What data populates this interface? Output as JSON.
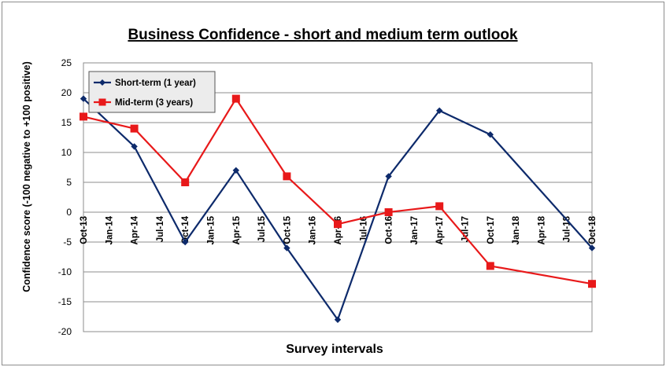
{
  "chart_data": {
    "type": "line",
    "title": "Business Confidence - short and medium term outlook",
    "xlabel": "Survey intervals",
    "ylabel": "Confidence score (-100 negative to +100 positive)",
    "ylim": [
      -20,
      25
    ],
    "yticks": [
      25,
      20,
      15,
      10,
      5,
      0,
      -5,
      -10,
      -15,
      -20
    ],
    "categories": [
      "Oct-13",
      "Jan-14",
      "Apr-14",
      "Jul-14",
      "Oct-14",
      "Jan-15",
      "Apr-15",
      "Jul-15",
      "Oct-15",
      "Jan-16",
      "Apr-16",
      "Jul-16",
      "Oct-16",
      "Jan-17",
      "Apr-17",
      "Jul-17",
      "Oct-17",
      "Jan-18",
      "Apr-18",
      "Jul-18",
      "Oct-18"
    ],
    "grid": true,
    "legend_position": "top-left",
    "series": [
      {
        "name": "Short-term (1 year)",
        "color": "#0d2a6b",
        "marker": "diamond",
        "points": [
          {
            "x": "Oct-13",
            "y": 19
          },
          {
            "x": "Apr-14",
            "y": 11
          },
          {
            "x": "Oct-14",
            "y": -5
          },
          {
            "x": "Apr-15",
            "y": 7
          },
          {
            "x": "Oct-15",
            "y": -6
          },
          {
            "x": "Apr-16",
            "y": -18
          },
          {
            "x": "Oct-16",
            "y": 6
          },
          {
            "x": "Apr-17",
            "y": 17
          },
          {
            "x": "Oct-17",
            "y": 13
          },
          {
            "x": "Oct-18",
            "y": -6
          }
        ]
      },
      {
        "name": "Mid-term (3 years)",
        "color": "#e8191a",
        "marker": "square",
        "points": [
          {
            "x": "Oct-13",
            "y": 16
          },
          {
            "x": "Apr-14",
            "y": 14
          },
          {
            "x": "Oct-14",
            "y": 5
          },
          {
            "x": "Apr-15",
            "y": 19
          },
          {
            "x": "Oct-15",
            "y": 6
          },
          {
            "x": "Apr-16",
            "y": -2
          },
          {
            "x": "Oct-16",
            "y": 0
          },
          {
            "x": "Apr-17",
            "y": 1
          },
          {
            "x": "Oct-17",
            "y": -9
          },
          {
            "x": "Oct-18",
            "y": -12
          }
        ]
      }
    ]
  }
}
